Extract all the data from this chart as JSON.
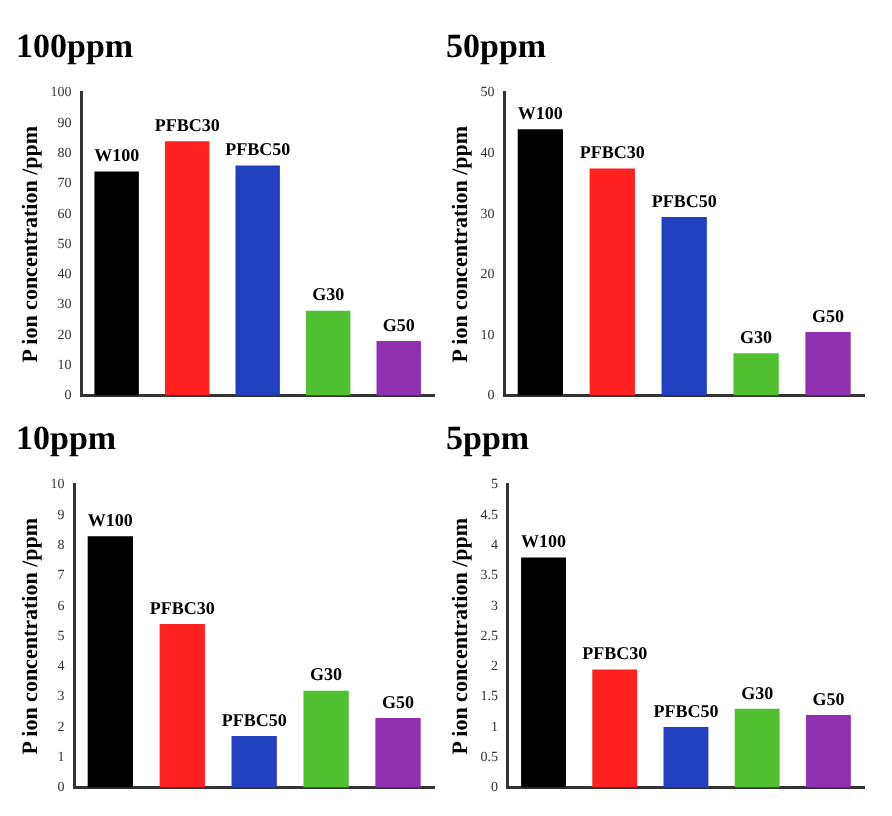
{
  "chart_data": [
    {
      "type": "bar",
      "title": "100ppm",
      "ylabel": "P ion concentration /ppm",
      "categories": [
        "W100",
        "PFBC30",
        "PFBC50",
        "G30",
        "G50"
      ],
      "colors": [
        "#000000",
        "#ff2020",
        "#2040c0",
        "#50c030",
        "#9030b0"
      ],
      "values": [
        74,
        84,
        76,
        28,
        18
      ],
      "ylim": [
        0,
        100
      ],
      "yticks": [
        0,
        10,
        20,
        30,
        40,
        50,
        60,
        70,
        80,
        90,
        100
      ],
      "grid": false,
      "legend": false
    },
    {
      "type": "bar",
      "title": "50ppm",
      "ylabel": "P ion concentration /ppm",
      "categories": [
        "W100",
        "PFBC30",
        "PFBC50",
        "G30",
        "G50"
      ],
      "colors": [
        "#000000",
        "#ff2020",
        "#2040c0",
        "#50c030",
        "#9030b0"
      ],
      "values": [
        44,
        37.5,
        29.5,
        7,
        10.5
      ],
      "ylim": [
        0,
        50
      ],
      "yticks": [
        0,
        10,
        20,
        30,
        40,
        50
      ],
      "grid": false,
      "legend": false
    },
    {
      "type": "bar",
      "title": "10ppm",
      "ylabel": "P ion concentration /ppm",
      "categories": [
        "W100",
        "PFBC30",
        "PFBC50",
        "G30",
        "G50"
      ],
      "colors": [
        "#000000",
        "#ff2020",
        "#2040c0",
        "#50c030",
        "#9030b0"
      ],
      "values": [
        8.3,
        5.4,
        1.7,
        3.2,
        2.3
      ],
      "ylim": [
        0,
        10
      ],
      "yticks": [
        0,
        1,
        2,
        3,
        4,
        5,
        6,
        7,
        8,
        9,
        10
      ],
      "grid": false,
      "legend": false
    },
    {
      "type": "bar",
      "title": "5ppm",
      "ylabel": "P ion concentration /ppm",
      "categories": [
        "W100",
        "PFBC30",
        "PFBC50",
        "G30",
        "G50"
      ],
      "colors": [
        "#000000",
        "#ff2020",
        "#2040c0",
        "#50c030",
        "#9030b0"
      ],
      "values": [
        3.8,
        1.95,
        1,
        1.3,
        1.2
      ],
      "ylim": [
        0,
        5
      ],
      "yticks": [
        0,
        0.5,
        1,
        1.5,
        2,
        2.5,
        3,
        3.5,
        4,
        4.5,
        5
      ],
      "grid": false,
      "legend": false
    }
  ]
}
